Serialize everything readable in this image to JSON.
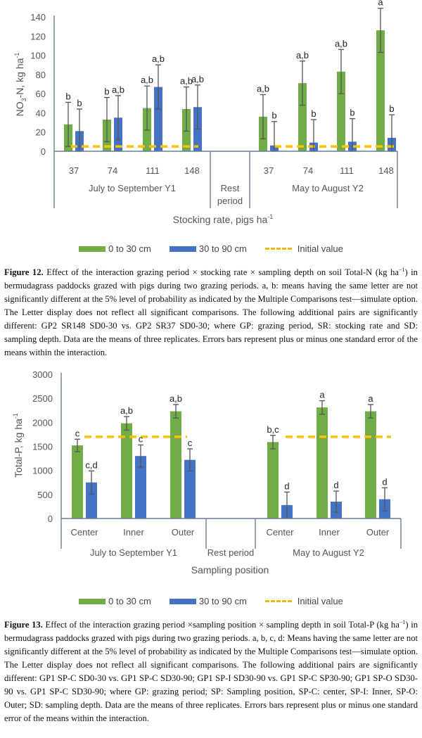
{
  "chart_data": [
    {
      "type": "bar",
      "ylabel": "NO3-N, kg ha-1",
      "ylabel_parts": {
        "main": "NO",
        "sub": "3",
        "mid": "-N, kg ha",
        "sup": "-1"
      },
      "xlabel": "Stocking rate, pigs ha-1",
      "xlabel_parts": {
        "main": "Stocking rate, pigs ha",
        "sup": "-1"
      },
      "ylim": [
        0,
        140
      ],
      "yticks": [
        0,
        20,
        40,
        60,
        80,
        100,
        120,
        140
      ],
      "groups": [
        {
          "label": "July to September Y1",
          "categories": [
            "37",
            "74",
            "111",
            "148"
          ]
        },
        {
          "label": "Rest period",
          "label_lines": [
            "Rest",
            "period"
          ],
          "categories": []
        },
        {
          "label": "May to August Y2",
          "categories": [
            "37",
            "74",
            "111",
            "148"
          ]
        }
      ],
      "series": [
        {
          "name": "0 to 30 cm",
          "color": "#70ad47",
          "values": [
            28,
            33,
            45,
            44,
            36,
            71,
            83,
            126
          ],
          "errors": [
            23,
            23,
            23,
            23,
            23,
            23,
            23,
            23
          ],
          "letters": [
            "b",
            "b",
            "a,b",
            "a,b",
            "a,b",
            "a,b",
            "a,b",
            "a"
          ]
        },
        {
          "name": "30 to 90 cm",
          "color": "#4472c4",
          "values": [
            21,
            35,
            67,
            46,
            6,
            9,
            10,
            14
          ],
          "errors": [
            23,
            23,
            23,
            23,
            25,
            24,
            24,
            24
          ],
          "letters": [
            "b",
            "a,b",
            "a,b",
            "a,b",
            "b",
            "b",
            "b",
            "b"
          ]
        }
      ],
      "reference_line": {
        "name": "Initial value",
        "value": 5,
        "color": "#ffc000"
      },
      "legend": [
        "0 to 30 cm",
        "30 to 90 cm",
        "Initial value"
      ],
      "legend_position": "bottom"
    },
    {
      "type": "bar",
      "ylabel": "Total-P, kg ha-1",
      "ylabel_parts": {
        "main": "Total-P, kg ha",
        "sup": "-1"
      },
      "xlabel": "Sampling position",
      "ylim": [
        0,
        3000
      ],
      "yticks": [
        0,
        500,
        1000,
        1500,
        2000,
        2500,
        3000
      ],
      "groups": [
        {
          "label": "July to September Y1",
          "categories": [
            "Center",
            "Inner",
            "Outer"
          ]
        },
        {
          "label": "Rest period",
          "categories": []
        },
        {
          "label": "May to August Y2",
          "categories": [
            "Center",
            "Inner",
            "Outer"
          ]
        }
      ],
      "series": [
        {
          "name": "0 to 30 cm",
          "color": "#70ad47",
          "values": [
            1520,
            1980,
            2230,
            1590,
            2310,
            2230
          ],
          "errors": [
            130,
            140,
            140,
            140,
            140,
            140
          ],
          "letters": [
            "c",
            "a,b",
            "a,b",
            "b,c",
            "a",
            "a"
          ]
        },
        {
          "name": "30 to 90 cm",
          "color": "#4472c4",
          "values": [
            750,
            1300,
            1220,
            280,
            350,
            400
          ],
          "errors": [
            240,
            230,
            230,
            270,
            220,
            240
          ],
          "letters": [
            "c,d",
            "c",
            "c",
            "d",
            "d",
            "d"
          ]
        }
      ],
      "reference_line": {
        "name": "Initial value",
        "value": 1700,
        "color": "#ffc000"
      },
      "legend": [
        "0 to 30 cm",
        "30 to 90 cm",
        "Initial value"
      ],
      "legend_position": "bottom"
    }
  ],
  "captions": {
    "fig12": {
      "label": "Figure 12.",
      "text": " Effect of the interaction grazing period × stocking rate × sampling depth on soil Total-N (kg ha",
      "sup": "−1",
      "rest": ") in bermudagrass paddocks grazed with pigs during two grazing periods. a, b: means having the same letter are not significantly different at the 5% level of probability as indicated by the Multiple Comparisons test—simulate option. The Letter display does not reflect all significant comparisons. The following additional pairs are significantly different: GP2 SR148 SD0-30 vs. GP2 SR37 SD0-30; where GP: grazing period, SR: stocking rate and SD: sampling depth. Data are the means of three replicates. Errors bars represent plus or minus one standard error of the means within the interaction."
    },
    "fig13": {
      "label": "Figure 13.",
      "text": " Effect of the interaction grazing period ×sampling position × sampling depth in soil Total-P (kg ha",
      "sup": "−1",
      "rest": ") in bermudagrass paddocks grazed with pigs during two grazing periods. a, b, c, d: Means having the same letter are not significantly different at the 5% level of probability as indicated by the Multiple Comparisons test—simulate option. The Letter display does not reflect all significant comparisons. The following additional pairs are significantly different: GP1 SP-C SD0-30 vs. GP1 SP-C SD30-90; GP1 SP-I SD30-90 vs. GP1 SP-C SP30-90; GP1 SP-O SD30-90 vs. GP1 SP-C SD30-90; where GP: grazing period; SP: Sampling position, SP-C: center, SP-I: Inner, SP-O: Outer; SD: sampling depth. Data are the means of three replicates. Errors bars represent plus or minus one standard error of the means within the interaction."
    }
  }
}
